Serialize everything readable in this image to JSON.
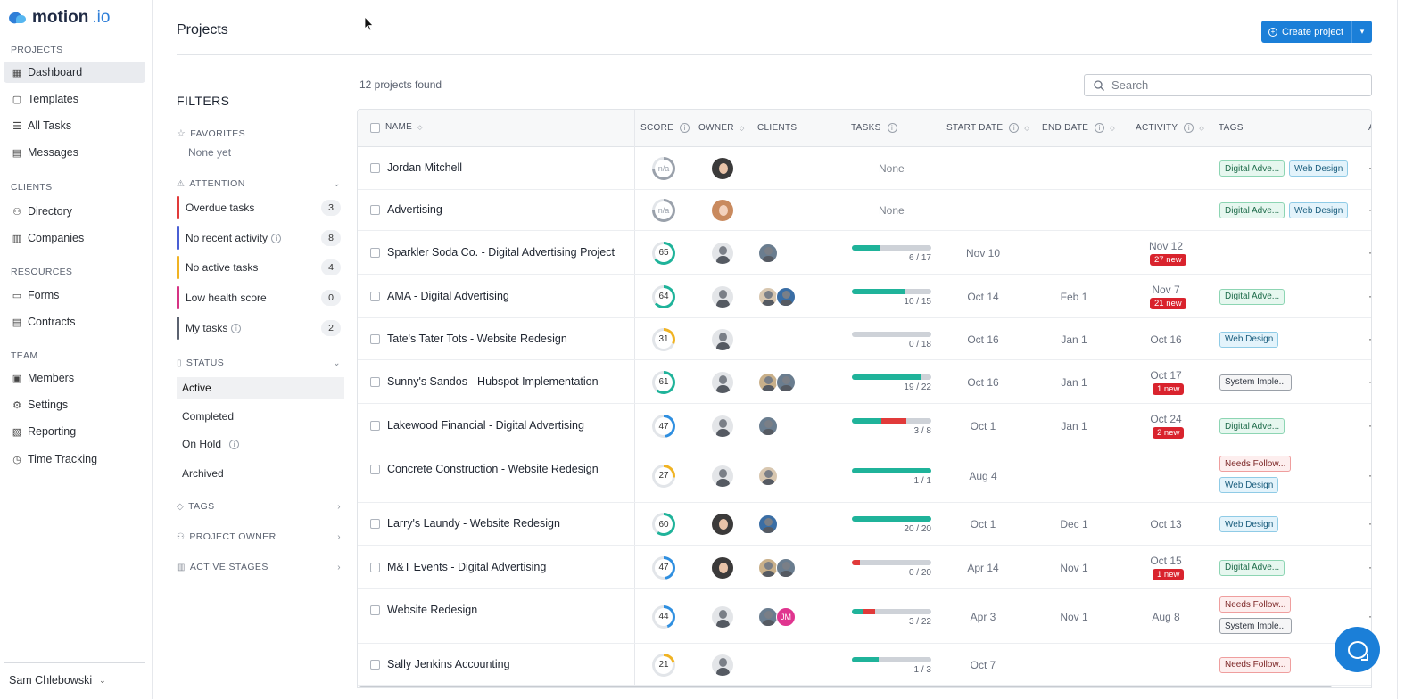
{
  "app": {
    "logo_text": "motion",
    "logo_suffix": ".io"
  },
  "nav": {
    "projects_label": "PROJECTS",
    "clients_label": "CLIENTS",
    "resources_label": "RESOURCES",
    "team_label": "TEAM",
    "items": {
      "dashboard": "Dashboard",
      "templates": "Templates",
      "all_tasks": "All Tasks",
      "messages": "Messages",
      "directory": "Directory",
      "companies": "Companies",
      "forms": "Forms",
      "contracts": "Contracts",
      "members": "Members",
      "settings": "Settings",
      "reporting": "Reporting",
      "time_tracking": "Time Tracking"
    },
    "user_name": "Sam Chlebowski"
  },
  "header": {
    "title": "Projects",
    "create_label": "Create project"
  },
  "filters": {
    "title": "FILTERS",
    "favorites_label": "FAVORITES",
    "favorites_empty": "None yet",
    "attention_label": "ATTENTION",
    "attention": [
      {
        "label": "Overdue tasks",
        "count": "3",
        "color": "#e13a3a"
      },
      {
        "label": "No recent activity",
        "count": "8",
        "color": "#4a5fd4"
      },
      {
        "label": "No active tasks",
        "count": "4",
        "color": "#f0b323"
      },
      {
        "label": "Low health score",
        "count": "0",
        "color": "#d63384"
      },
      {
        "label": "My tasks",
        "count": "2",
        "color": "#5b6270"
      }
    ],
    "status_label": "STATUS",
    "status": [
      "Active",
      "Completed",
      "On Hold",
      "Archived"
    ],
    "tags_label": "TAGS",
    "owner_label": "PROJECT OWNER",
    "stages_label": "ACTIVE STAGES"
  },
  "toolbar": {
    "count_text": "12 projects found",
    "search_placeholder": "Search"
  },
  "columns": {
    "name": "NAME",
    "score": "SCORE",
    "owner": "OWNER",
    "clients": "CLIENTS",
    "tasks": "TASKS",
    "start": "START DATE",
    "end": "END DATE",
    "activity": "ACTIVITY",
    "tags": "TAGS",
    "more": "A"
  },
  "rows": [
    {
      "name": "Jordan Mitchell",
      "score": "n/a",
      "tasks_text": "None",
      "start": "",
      "end": "",
      "activity": "",
      "new": "",
      "tags": [
        "Digital Adve...",
        "Web Design"
      ]
    },
    {
      "name": "Advertising",
      "score": "n/a",
      "tasks_text": "None",
      "start": "",
      "end": "",
      "activity": "",
      "new": "",
      "tags": [
        "Digital Adve...",
        "Web Design"
      ]
    },
    {
      "name": "Sparkler Soda Co. - Digital Advertising Project",
      "score": "65",
      "progress": "6 / 17",
      "start": "Nov 10",
      "end": "",
      "activity": "Nov 12",
      "new": "27 new",
      "tags": []
    },
    {
      "name": "AMA - Digital Advertising",
      "score": "64",
      "progress": "10 / 15",
      "start": "Oct 14",
      "end": "Feb 1",
      "activity": "Nov 7",
      "new": "21 new",
      "tags": [
        "Digital Adve..."
      ]
    },
    {
      "name": "Tate's Tater Tots - Website Redesign",
      "score": "31",
      "progress": "0 / 18",
      "start": "Oct 16",
      "end": "Jan 1",
      "activity": "Oct 16",
      "new": "",
      "tags": [
        "Web Design"
      ]
    },
    {
      "name": "Sunny's Sandos - Hubspot Implementation",
      "score": "61",
      "progress": "19 / 22",
      "start": "Oct 16",
      "end": "Jan 1",
      "activity": "Oct 17",
      "new": "1 new",
      "tags": [
        "System Imple..."
      ]
    },
    {
      "name": "Lakewood Financial - Digital Advertising",
      "score": "47",
      "progress": "3 / 8",
      "start": "Oct 1",
      "end": "Jan 1",
      "activity": "Oct 24",
      "new": "2 new",
      "tags": [
        "Digital Adve..."
      ]
    },
    {
      "name": "Concrete Construction - Website Redesign",
      "score": "27",
      "progress": "1 / 1",
      "start": "Aug 4",
      "end": "",
      "activity": "",
      "new": "",
      "tags": [
        "Needs Follow...",
        "Web Design"
      ]
    },
    {
      "name": "Larry's Laundy - Website Redesign",
      "score": "60",
      "progress": "20 / 20",
      "start": "Oct 1",
      "end": "Dec 1",
      "activity": "Oct 13",
      "new": "",
      "tags": [
        "Web Design"
      ]
    },
    {
      "name": "M&T Events - Digital Advertising",
      "score": "47",
      "progress": "0 / 20",
      "start": "Apr 14",
      "end": "Nov 1",
      "activity": "Oct 15",
      "new": "1 new",
      "tags": [
        "Digital Adve..."
      ]
    },
    {
      "name": "Website Redesign",
      "score": "44",
      "progress": "3 / 22",
      "start": "Apr 3",
      "end": "Nov 1",
      "activity": "Aug 8",
      "new": "",
      "client_initials": "JM",
      "tags": [
        "Needs Follow...",
        "System Imple..."
      ]
    },
    {
      "name": "Sally Jenkins Accounting",
      "score": "21",
      "progress": "1 / 3",
      "start": "Oct 7",
      "end": "",
      "activity": "",
      "new": "",
      "tags": [
        "Needs Follow..."
      ]
    }
  ],
  "colors": {
    "accent": "#1b7fd8",
    "progress_green": "#1fb39a",
    "progress_red": "#e13a3a",
    "new_badge": "#d9232d"
  }
}
